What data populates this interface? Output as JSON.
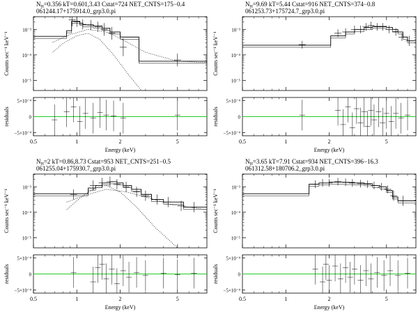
{
  "figure": {
    "ylabel_counts": "Counts sec⁻¹ keV⁻¹",
    "ylabel_resid": "residuals",
    "xlabel": "Energy (keV)",
    "x_ticks": [
      "0.5",
      "1",
      "2",
      "5"
    ],
    "resid_ticks": [
      "5×10⁻⁴",
      "0",
      "−5×10⁻⁴"
    ],
    "log_ticks": [
      "10⁻³",
      "10⁻⁴",
      "10⁻⁵"
    ],
    "colors": {
      "zero_line": "#22cc22",
      "data": "#000000"
    }
  },
  "chart_data": [
    {
      "type": "line",
      "title": "NH=0.356 kT=0.601,3.43 Cstat=724 NET_CNTS=175−0.4",
      "nh_prefix": "N",
      "nh_sub": "H",
      "title_rest": "=0.356 kT=0.601,3.43 Cstat=724 NET_CNTS=175−0.4",
      "subtitle": "061244.17+175914.0_grp3.0.pi",
      "xscale": "log",
      "xlim": [
        0.5,
        8
      ],
      "ylim_log": [
        -5.4,
        -2.5
      ],
      "model_steps": [
        [
          0.5,
          -3.27
        ],
        [
          0.85,
          -3.05
        ],
        [
          0.92,
          -2.68
        ],
        [
          1.05,
          -2.75
        ],
        [
          1.1,
          -2.82
        ],
        [
          1.3,
          -2.86
        ],
        [
          1.5,
          -2.95
        ],
        [
          1.7,
          -3.1
        ],
        [
          2.0,
          -3.3
        ],
        [
          2.7,
          -4.25
        ],
        [
          8.0,
          -4.25
        ]
      ],
      "comp1": [
        [
          0.68,
          -3.9
        ],
        [
          0.8,
          -3.55
        ],
        [
          1.0,
          -3.25
        ],
        [
          1.2,
          -3.15
        ],
        [
          1.45,
          -3.4
        ],
        [
          1.8,
          -4.0
        ],
        [
          2.3,
          -4.8
        ],
        [
          3.0,
          -5.6
        ]
      ],
      "comp2": [
        [
          0.68,
          -3.5
        ],
        [
          0.9,
          -3.2
        ],
        [
          1.2,
          -3.0
        ],
        [
          1.6,
          -3.1
        ],
        [
          2.0,
          -3.35
        ],
        [
          3.0,
          -3.9
        ],
        [
          5.0,
          -4.25
        ],
        [
          8.0,
          -4.3
        ]
      ],
      "points": [
        [
          0.93,
          -2.62,
          0.25
        ],
        [
          1.0,
          -2.7,
          0.2
        ],
        [
          1.1,
          -2.8,
          0.2
        ],
        [
          1.25,
          -2.83,
          0.2
        ],
        [
          1.4,
          -2.9,
          0.2
        ],
        [
          1.55,
          -3.0,
          0.25
        ],
        [
          1.75,
          -3.15,
          0.25
        ],
        [
          2.1,
          -3.7,
          0.35
        ],
        [
          5.0,
          -4.2,
          0.25
        ]
      ],
      "residuals": [
        [
          0.7,
          -0.2
        ],
        [
          0.85,
          0.3
        ],
        [
          0.95,
          0.6
        ],
        [
          1.05,
          -0.3
        ],
        [
          1.15,
          0.2
        ],
        [
          1.3,
          -0.1
        ],
        [
          1.45,
          0.25
        ],
        [
          1.6,
          0.1
        ],
        [
          1.8,
          0.05
        ],
        [
          2.1,
          -0.1
        ],
        [
          5.0,
          0.1
        ]
      ]
    },
    {
      "type": "line",
      "title": "NH=9.69 kT=5.44 Cstat=916 NET_CNTS=374−0.8",
      "nh_prefix": "N",
      "nh_sub": "H",
      "title_rest": "=9.69 kT=5.44 Cstat=916 NET_CNTS=374−0.8",
      "subtitle": "061253.73+175724.7_grp3.0.pi",
      "xscale": "log",
      "xlim": [
        0.5,
        8
      ],
      "ylim_log": [
        -5.4,
        -2.5
      ],
      "model_steps": [
        [
          0.5,
          -3.62
        ],
        [
          2.05,
          -3.62
        ],
        [
          2.05,
          -3.25
        ],
        [
          2.6,
          -3.1
        ],
        [
          3.0,
          -3.0
        ],
        [
          3.5,
          -2.93
        ],
        [
          4.0,
          -2.88
        ],
        [
          4.5,
          -2.88
        ],
        [
          5.0,
          -2.92
        ],
        [
          5.5,
          -3.0
        ],
        [
          6.0,
          -3.1
        ],
        [
          6.5,
          -3.3
        ],
        [
          7.0,
          -3.45
        ],
        [
          8.0,
          -3.5
        ]
      ],
      "comp1": [],
      "comp2": [],
      "points": [
        [
          1.3,
          -3.6,
          0.15
        ],
        [
          2.3,
          -3.15,
          0.15
        ],
        [
          2.6,
          -3.1,
          0.15
        ],
        [
          3.0,
          -3.0,
          0.15
        ],
        [
          3.3,
          -3.0,
          0.15
        ],
        [
          3.6,
          -2.9,
          0.15
        ],
        [
          3.9,
          -2.85,
          0.15
        ],
        [
          4.3,
          -2.9,
          0.15
        ],
        [
          4.7,
          -2.9,
          0.15
        ],
        [
          5.2,
          -3.0,
          0.15
        ],
        [
          5.8,
          -3.1,
          0.15
        ],
        [
          6.4,
          -3.3,
          0.15
        ],
        [
          7.2,
          -3.45,
          0.2
        ]
      ],
      "residuals": [
        [
          1.3,
          0.1
        ],
        [
          2.3,
          0.4
        ],
        [
          2.5,
          -0.5
        ],
        [
          2.7,
          0.6
        ],
        [
          2.9,
          -0.7
        ],
        [
          3.1,
          0.5
        ],
        [
          3.3,
          -0.4
        ],
        [
          3.5,
          0.3
        ],
        [
          3.7,
          -0.6
        ],
        [
          3.9,
          0.4
        ],
        [
          4.1,
          -0.2
        ],
        [
          4.4,
          0.3
        ],
        [
          4.7,
          -0.4
        ],
        [
          5.0,
          0.2
        ],
        [
          5.4,
          -0.3
        ],
        [
          5.8,
          0.2
        ],
        [
          6.3,
          -0.1
        ],
        [
          7.0,
          0.1
        ]
      ]
    },
    {
      "type": "line",
      "title": "NH=2 kT=0.86,8.73 Cstat=953 NET_CNTS=251−0.5",
      "nh_prefix": "N",
      "nh_sub": "H",
      "title_rest": "=2 kT=0.86,8.73 Cstat=953 NET_CNTS=251−0.5",
      "subtitle": "061255.04+175930.7_grp3.0.pi",
      "xscale": "log",
      "xlim": [
        0.5,
        8
      ],
      "ylim_log": [
        -5.4,
        -2.5
      ],
      "model_steps": [
        [
          0.5,
          -3.27
        ],
        [
          1.2,
          -3.27
        ],
        [
          1.2,
          -3.05
        ],
        [
          1.35,
          -2.95
        ],
        [
          1.5,
          -2.85
        ],
        [
          1.7,
          -2.8
        ],
        [
          1.9,
          -2.85
        ],
        [
          2.1,
          -2.95
        ],
        [
          2.4,
          -3.1
        ],
        [
          2.8,
          -3.3
        ],
        [
          3.3,
          -3.5
        ],
        [
          4.0,
          -3.6
        ],
        [
          5.5,
          -3.8
        ],
        [
          8.0,
          -3.85
        ]
      ],
      "comp1": [
        [
          0.85,
          -3.9
        ],
        [
          1.1,
          -3.35
        ],
        [
          1.35,
          -3.05
        ],
        [
          1.6,
          -2.95
        ],
        [
          2.0,
          -3.2
        ],
        [
          2.6,
          -3.8
        ],
        [
          3.5,
          -4.6
        ],
        [
          5.0,
          -5.4
        ]
      ],
      "comp2": [
        [
          0.85,
          -3.6
        ],
        [
          1.2,
          -3.3
        ],
        [
          1.6,
          -3.1
        ],
        [
          2.2,
          -3.2
        ],
        [
          3.0,
          -3.4
        ],
        [
          4.5,
          -3.7
        ],
        [
          8.0,
          -3.9
        ]
      ],
      "points": [
        [
          0.95,
          -3.3,
          0.2
        ],
        [
          1.3,
          -2.95,
          0.2
        ],
        [
          1.5,
          -2.85,
          0.2
        ],
        [
          1.7,
          -2.8,
          0.2
        ],
        [
          1.9,
          -2.9,
          0.2
        ],
        [
          2.2,
          -3.0,
          0.2
        ],
        [
          2.6,
          -3.2,
          0.2
        ],
        [
          3.0,
          -3.35,
          0.2
        ],
        [
          3.6,
          -3.5,
          0.2
        ],
        [
          4.3,
          -3.6,
          0.2
        ],
        [
          5.3,
          -3.75,
          0.2
        ],
        [
          6.5,
          -3.8,
          0.2
        ]
      ],
      "residuals": [
        [
          0.95,
          0.1
        ],
        [
          1.3,
          -0.5
        ],
        [
          1.4,
          0.4
        ],
        [
          1.5,
          0.6
        ],
        [
          1.6,
          -0.3
        ],
        [
          1.75,
          0.3
        ],
        [
          1.9,
          -0.6
        ],
        [
          2.1,
          0.2
        ],
        [
          2.3,
          -0.2
        ],
        [
          2.6,
          0.1
        ],
        [
          3.0,
          -0.1
        ],
        [
          4.0,
          0.05
        ],
        [
          5.0,
          -0.05
        ],
        [
          6.5,
          0.05
        ]
      ]
    },
    {
      "type": "line",
      "title": "NH=3.65 kT=7.91 Cstat=934 NET_CNTS=396−16.3",
      "nh_prefix": "N",
      "nh_sub": "H",
      "title_rest": "=3.65 kT=7.91 Cstat=934 NET_CNTS=396−16.3",
      "subtitle": "061312.58+180706.2_grp3.0.pi",
      "xscale": "log",
      "xlim": [
        0.5,
        8
      ],
      "ylim_log": [
        -5.4,
        -2.5
      ],
      "model_steps": [
        [
          0.5,
          -3.27
        ],
        [
          1.45,
          -3.27
        ],
        [
          1.45,
          -2.9
        ],
        [
          1.7,
          -2.85
        ],
        [
          2.0,
          -2.82
        ],
        [
          2.5,
          -2.83
        ],
        [
          3.0,
          -2.85
        ],
        [
          3.5,
          -2.88
        ],
        [
          4.0,
          -2.95
        ],
        [
          4.5,
          -3.0
        ],
        [
          5.0,
          -3.15
        ],
        [
          5.5,
          -3.4
        ],
        [
          6.0,
          -3.55
        ],
        [
          8.0,
          -3.55
        ]
      ],
      "comp1": [],
      "comp2": [],
      "points": [
        [
          1.6,
          -2.9,
          0.15
        ],
        [
          1.8,
          -2.85,
          0.15
        ],
        [
          2.0,
          -2.85,
          0.15
        ],
        [
          2.3,
          -2.8,
          0.15
        ],
        [
          2.6,
          -2.82,
          0.15
        ],
        [
          2.9,
          -2.85,
          0.15
        ],
        [
          3.3,
          -2.88,
          0.15
        ],
        [
          3.7,
          -2.9,
          0.15
        ],
        [
          4.1,
          -2.95,
          0.15
        ],
        [
          4.6,
          -3.0,
          0.15
        ],
        [
          5.1,
          -3.1,
          0.15
        ],
        [
          5.6,
          -3.35,
          0.2
        ],
        [
          6.5,
          -3.55,
          0.2
        ]
      ],
      "residuals": [
        [
          1.6,
          0.3
        ],
        [
          1.8,
          -0.5
        ],
        [
          1.9,
          0.6
        ],
        [
          2.0,
          -0.4
        ],
        [
          2.2,
          0.5
        ],
        [
          2.4,
          -0.3
        ],
        [
          2.6,
          0.4
        ],
        [
          2.8,
          -0.2
        ],
        [
          3.0,
          0.3
        ],
        [
          3.3,
          -0.4
        ],
        [
          3.6,
          0.2
        ],
        [
          3.9,
          -0.3
        ],
        [
          4.3,
          0.1
        ],
        [
          4.8,
          -0.1
        ],
        [
          5.3,
          0.2
        ],
        [
          6.0,
          -0.1
        ],
        [
          7.0,
          0.05
        ]
      ]
    }
  ]
}
